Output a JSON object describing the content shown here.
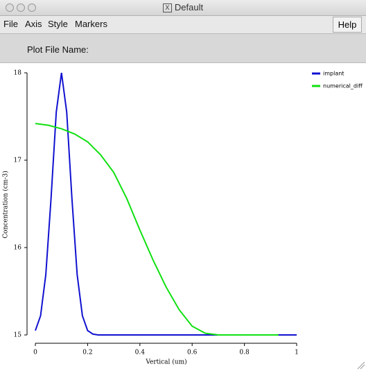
{
  "window": {
    "title": "Default"
  },
  "menu": {
    "items": [
      "File",
      "Axis",
      "Style",
      "Markers"
    ],
    "help": "Help"
  },
  "plot_file_label": "Plot File Name:",
  "chart_data": {
    "type": "line",
    "xlabel": "Vertical (um)",
    "ylabel": "Concentration (cm-3)",
    "xlim": [
      0,
      1
    ],
    "ylim": [
      15,
      18
    ],
    "xticks": [
      0,
      0.2,
      0.4,
      0.6,
      0.8,
      1
    ],
    "yticks": [
      15,
      16,
      17,
      18
    ],
    "legend": "upper right",
    "series": [
      {
        "name": "implant",
        "color": "#1010d0",
        "x": [
          0,
          0.02,
          0.04,
          0.06,
          0.08,
          0.1,
          0.12,
          0.14,
          0.16,
          0.18,
          0.2,
          0.22,
          0.24,
          0.3,
          0.4,
          0.5,
          0.6,
          0.7,
          0.8,
          0.9,
          1
        ],
        "values": [
          15.05,
          15.22,
          15.69,
          16.56,
          17.55,
          18,
          17.55,
          16.56,
          15.69,
          15.22,
          15.05,
          15.01,
          15,
          15,
          15,
          15,
          15,
          15,
          15,
          15,
          15
        ]
      },
      {
        "name": "numerical_diff",
        "color": "#10e010",
        "x": [
          0,
          0.05,
          0.1,
          0.15,
          0.2,
          0.25,
          0.3,
          0.35,
          0.4,
          0.45,
          0.5,
          0.55,
          0.6,
          0.65,
          0.7,
          0.8,
          0.93
        ],
        "values": [
          17.42,
          17.4,
          17.36,
          17.3,
          17.21,
          17.06,
          16.86,
          16.56,
          16.2,
          15.86,
          15.55,
          15.29,
          15.1,
          15.02,
          15,
          15,
          15
        ]
      }
    ]
  }
}
